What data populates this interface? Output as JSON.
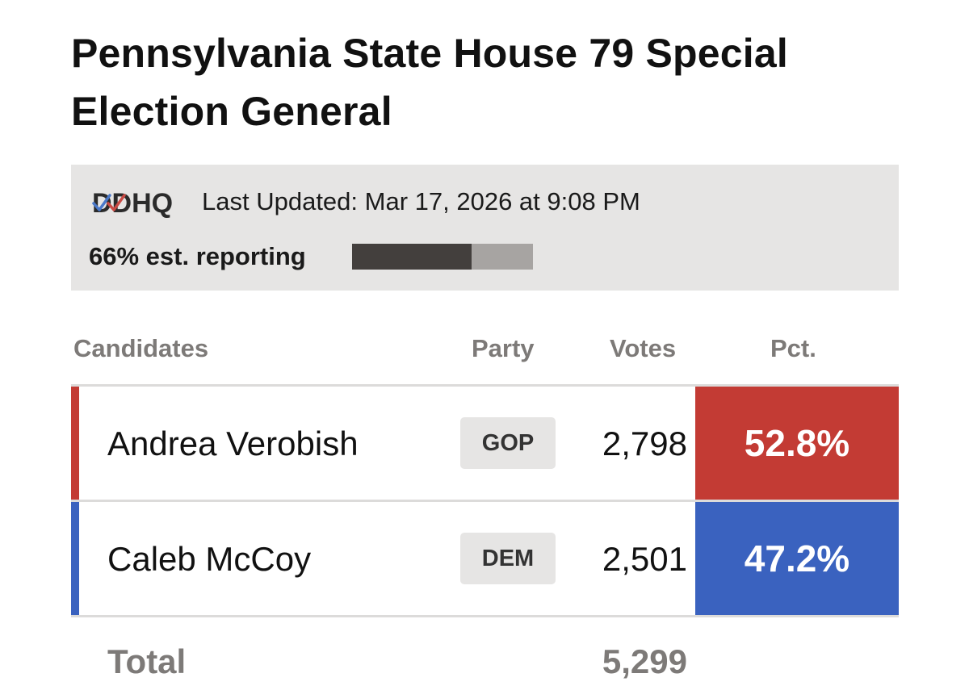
{
  "header": {
    "title_line1": "Pennsylvania State House 79 Special",
    "title_line2": "Election General"
  },
  "info": {
    "brand": "DDHQ",
    "last_updated": "Last Updated: Mar 17, 2026 at 9:08 PM",
    "reporting_label": "66% est. reporting",
    "reporting_fraction": 0.66,
    "bar_fill_color": "#433f3d",
    "bar_track_color": "#a7a4a2"
  },
  "table": {
    "columns": {
      "candidates": "Candidates",
      "party": "Party",
      "votes": "Votes",
      "pct": "Pct."
    },
    "rows": [
      {
        "name": "Andrea Verobish",
        "party": "GOP",
        "votes": "2,798",
        "pct": "52.8%",
        "color": "#c33b34"
      },
      {
        "name": "Caleb McCoy",
        "party": "DEM",
        "votes": "2,501",
        "pct": "47.2%",
        "color": "#3a62bf"
      }
    ],
    "total_label": "Total",
    "total_votes": "5,299"
  }
}
